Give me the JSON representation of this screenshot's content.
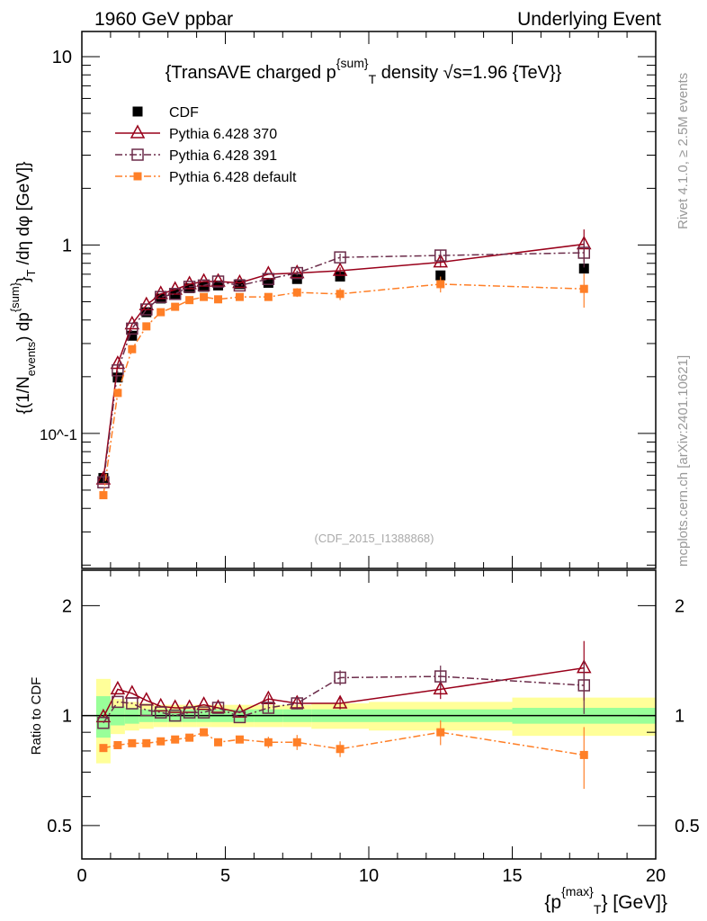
{
  "header": {
    "left": "1960 GeV ppbar",
    "right": "Underlying Event"
  },
  "side_text": {
    "rivet": "Rivet 4.1.0, ≥ 2.5M events",
    "mcplots": "mcplots.cern.ch [arXiv:2401.10621]"
  },
  "watermark": "(CDF_2015_I1388868)",
  "chart_data": [
    {
      "type": "line",
      "title": "{TransAVE charged p^{sum}_T density √s=1.96 {TeV}}",
      "title_parts": {
        "a": "{TransAVE charged p",
        "sup": "{sum}",
        "sub": "T",
        "b": " density √s=1.96 {TeV}}"
      },
      "ylabel": "{(1/N_events) dp^{sum}_T /dη dφ [GeV]}",
      "ylabel_parts": {
        "a": "{(1/N",
        "sub1": "events",
        "b": ") dp",
        "sup": "{sum}",
        "c": "}",
        "sub2": "T",
        "d": " /dη  dφ [GeV]}"
      },
      "yscale": "log",
      "ylim": [
        0.0192,
        13.6
      ],
      "xlim": [
        0,
        20
      ],
      "ytick_labels": {
        "10": "10",
        "1": "1",
        "0.1": "10^-1"
      },
      "legend_position": "top-left",
      "x": [
        0.75,
        1.25,
        1.75,
        2.25,
        2.75,
        3.25,
        3.75,
        4.25,
        4.75,
        5.5,
        6.5,
        7.5,
        9,
        12.5,
        17.5
      ],
      "series": [
        {
          "name": "CDF",
          "color": "#000000",
          "marker": "filled-square",
          "values": [
            0.058,
            0.198,
            0.33,
            0.44,
            0.52,
            0.55,
            0.59,
            0.6,
            0.61,
            0.62,
            0.63,
            0.66,
            0.68,
            0.69,
            0.75
          ]
        },
        {
          "name": "Pythia 6.428 370",
          "color": "#99001a",
          "marker": "open-triangle",
          "line": "solid",
          "values": [
            0.057,
            0.234,
            0.38,
            0.48,
            0.55,
            0.58,
            0.62,
            0.64,
            0.64,
            0.63,
            0.7,
            0.71,
            0.73,
            0.81,
            1.01
          ],
          "errors": [
            0,
            0,
            0,
            0,
            0,
            0,
            0,
            0,
            0,
            0,
            0,
            0.02,
            0.03,
            0.05,
            0.2
          ]
        },
        {
          "name": "Pythia 6.428 391",
          "color": "#6b2c4a",
          "marker": "open-square",
          "line": "dashdot",
          "values": [
            0.055,
            0.216,
            0.36,
            0.455,
            0.53,
            0.55,
            0.6,
            0.61,
            0.64,
            0.61,
            0.66,
            0.71,
            0.86,
            0.88,
            0.91
          ],
          "errors": [
            0,
            0,
            0,
            0,
            0,
            0,
            0,
            0,
            0,
            0,
            0,
            0.02,
            0.04,
            0.06,
            0.15
          ]
        },
        {
          "name": "Pythia 6.428 default",
          "color": "#ff7f27",
          "marker": "filled-square-small",
          "line": "dashdot",
          "values": [
            0.047,
            0.164,
            0.28,
            0.37,
            0.44,
            0.47,
            0.51,
            0.53,
            0.515,
            0.53,
            0.53,
            0.56,
            0.55,
            0.62,
            0.585
          ],
          "errors": [
            0,
            0,
            0,
            0,
            0,
            0,
            0,
            0,
            0,
            0,
            0.02,
            0.03,
            0.04,
            0.06,
            0.12
          ]
        }
      ]
    },
    {
      "type": "line",
      "ylabel": "Ratio to CDF",
      "xlabel_parts": {
        "a": "{p",
        "sup": "{max}",
        "sub": "T",
        "b": "} [GeV]}"
      },
      "xlabel": "{p^{max}_T} [GeV]}",
      "yscale": "log",
      "ylim": [
        0.405,
        2.5
      ],
      "xlim": [
        0,
        20
      ],
      "xticks": [
        "0",
        "5",
        "10",
        "15",
        "20"
      ],
      "yticks": [
        "0.5",
        "1",
        "2"
      ],
      "bin_edges": [
        0.5,
        1,
        1.5,
        2,
        2.5,
        3,
        3.5,
        4,
        4.5,
        5,
        6,
        7,
        8,
        10,
        15,
        20
      ],
      "band_green": [
        0.13,
        0.06,
        0.05,
        0.04,
        0.04,
        0.04,
        0.04,
        0.04,
        0.04,
        0.04,
        0.04,
        0.04,
        0.04,
        0.04,
        0.05
      ],
      "band_yellow": [
        0.26,
        0.11,
        0.09,
        0.08,
        0.07,
        0.07,
        0.07,
        0.07,
        0.07,
        0.07,
        0.07,
        0.07,
        0.08,
        0.09,
        0.12
      ],
      "x": [
        0.75,
        1.25,
        1.75,
        2.25,
        2.75,
        3.25,
        3.75,
        4.25,
        4.75,
        5.5,
        6.5,
        7.5,
        9,
        12.5,
        17.5
      ],
      "series": [
        {
          "name": "Pythia 6.428 370",
          "color": "#99001a",
          "values": [
            0.99,
            1.18,
            1.15,
            1.1,
            1.06,
            1.05,
            1.05,
            1.07,
            1.05,
            1.02,
            1.11,
            1.08,
            1.08,
            1.18,
            1.35
          ],
          "errors": [
            0,
            0,
            0,
            0,
            0,
            0,
            0,
            0,
            0,
            0,
            0.03,
            0.03,
            0.04,
            0.07,
            0.25
          ]
        },
        {
          "name": "Pythia 6.428 391",
          "color": "#6b2c4a",
          "values": [
            0.955,
            1.09,
            1.08,
            1.035,
            1.02,
            1.0,
            1.02,
            1.02,
            1.05,
            0.99,
            1.05,
            1.08,
            1.27,
            1.28,
            1.21
          ],
          "errors": [
            0,
            0,
            0,
            0,
            0,
            0,
            0,
            0,
            0,
            0,
            0.03,
            0.04,
            0.06,
            0.09,
            0.2
          ]
        },
        {
          "name": "Pythia 6.428 default",
          "color": "#ff7f27",
          "values": [
            0.815,
            0.83,
            0.84,
            0.84,
            0.85,
            0.86,
            0.87,
            0.9,
            0.845,
            0.86,
            0.845,
            0.845,
            0.81,
            0.9,
            0.78
          ],
          "errors": [
            0,
            0,
            0,
            0,
            0,
            0,
            0,
            0,
            0,
            0,
            0.03,
            0.04,
            0.04,
            0.07,
            0.15
          ]
        }
      ]
    }
  ]
}
